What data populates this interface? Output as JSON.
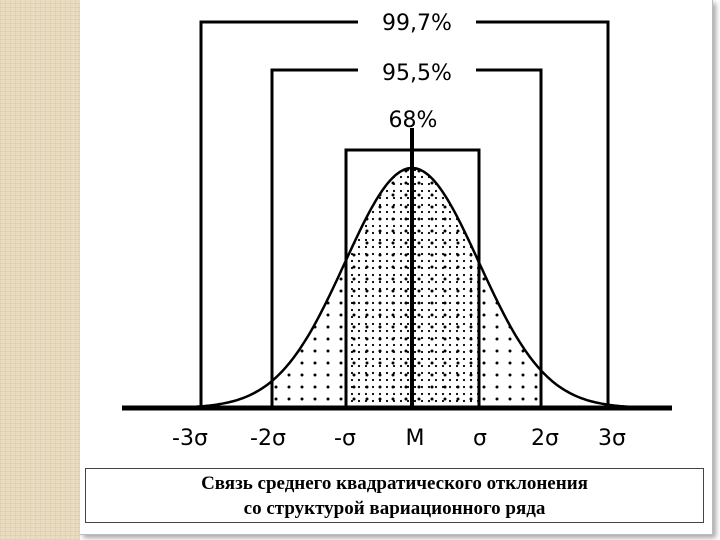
{
  "percent_labels": {
    "three_sigma": "99,7%",
    "two_sigma": "95,5%",
    "one_sigma": "68%"
  },
  "axis_labels": [
    "-3σ",
    "-2σ",
    "-σ",
    "M",
    "σ",
    "2σ",
    "3σ"
  ],
  "caption": {
    "line1": "Связь среднего квадратического отклонения",
    "line2": "со структурой вариационного ряда"
  }
}
